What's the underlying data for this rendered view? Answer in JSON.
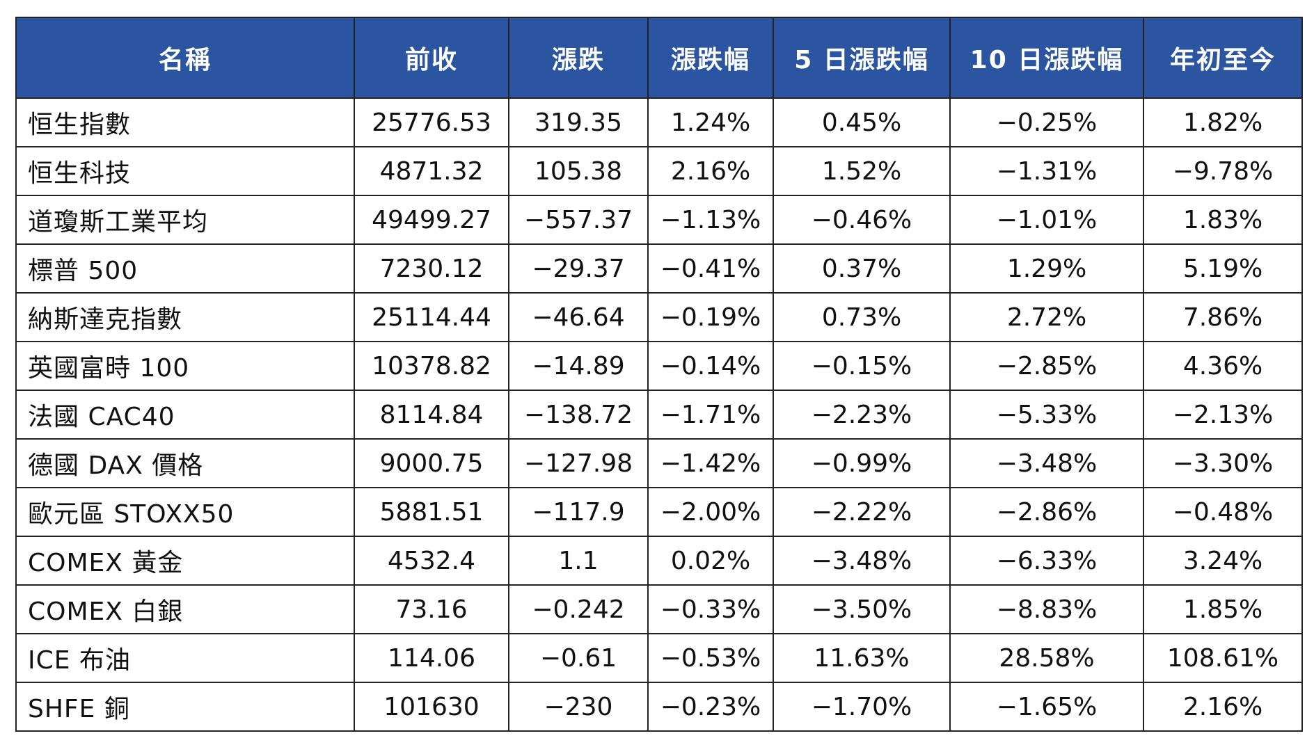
{
  "table": {
    "header_color": "#2b55a0",
    "columns": [
      "名稱",
      "前收",
      "漲跌",
      "漲跌幅",
      "5 日漲跌幅",
      "10 日漲跌幅",
      "年初至今"
    ],
    "rows": [
      [
        "恒生指數",
        "25776.53",
        "319.35",
        "1.24%",
        "0.45%",
        "−0.25%",
        "1.82%"
      ],
      [
        "恒生科技",
        "4871.32",
        "105.38",
        "2.16%",
        "1.52%",
        "−1.31%",
        "−9.78%"
      ],
      [
        "道瓊斯工業平均",
        "49499.27",
        "−557.37",
        "−1.13%",
        "−0.46%",
        "−1.01%",
        "1.83%"
      ],
      [
        "標普 500",
        "7230.12",
        "−29.37",
        "−0.41%",
        "0.37%",
        "1.29%",
        "5.19%"
      ],
      [
        "納斯達克指數",
        "25114.44",
        "−46.64",
        "−0.19%",
        "0.73%",
        "2.72%",
        "7.86%"
      ],
      [
        "英國富時 100",
        "10378.82",
        "−14.89",
        "−0.14%",
        "−0.15%",
        "−2.85%",
        "4.36%"
      ],
      [
        "法國 CAC40",
        "8114.84",
        "−138.72",
        "−1.71%",
        "−2.23%",
        "−5.33%",
        "−2.13%"
      ],
      [
        "德國 DAX 價格",
        "9000.75",
        "−127.98",
        "−1.42%",
        "−0.99%",
        "−3.48%",
        "−3.30%"
      ],
      [
        "歐元區 STOXX50",
        "5881.51",
        "−117.9",
        "−2.00%",
        "−2.22%",
        "−2.86%",
        "−0.48%"
      ],
      [
        "COMEX 黃金",
        "4532.4",
        "1.1",
        "0.02%",
        "−3.48%",
        "−6.33%",
        "3.24%"
      ],
      [
        "COMEX 白銀",
        "73.16",
        "−0.242",
        "−0.33%",
        "−3.50%",
        "−8.83%",
        "1.85%"
      ],
      [
        "ICE 布油",
        "114.06",
        "−0.61",
        "−0.53%",
        "11.63%",
        "28.58%",
        "108.61%"
      ],
      [
        "SHFE 銅",
        "101630",
        "−230",
        "−0.23%",
        "−1.70%",
        "−1.65%",
        "2.16%"
      ]
    ]
  }
}
